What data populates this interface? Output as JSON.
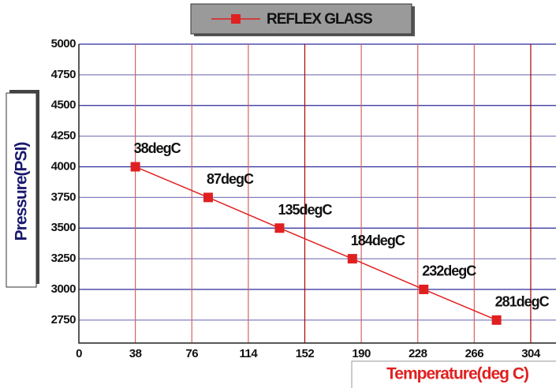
{
  "chart_data": {
    "type": "line",
    "xlabel": "Temperature(deg C)",
    "ylabel": "Pressure(PSI)",
    "x": [
      38,
      87,
      135,
      184,
      232,
      281
    ],
    "series": [
      {
        "name": "REFLEX GLASS",
        "color": "#e02020",
        "values": [
          4000,
          3750,
          3500,
          3250,
          3000,
          2750
        ]
      }
    ],
    "point_labels": [
      "38degC",
      "87degC",
      "135degC",
      "184degC",
      "232degC",
      "281degC"
    ],
    "xlim": [
      0,
      321
    ],
    "xticks": [
      0,
      38,
      76,
      114,
      152,
      190,
      228,
      266,
      304
    ],
    "ylim": [
      2562.5,
      5000
    ],
    "yticks": [
      2750,
      3000,
      3250,
      3500,
      3750,
      4000,
      4250,
      4500,
      4750,
      5000
    ],
    "grid": true
  }
}
